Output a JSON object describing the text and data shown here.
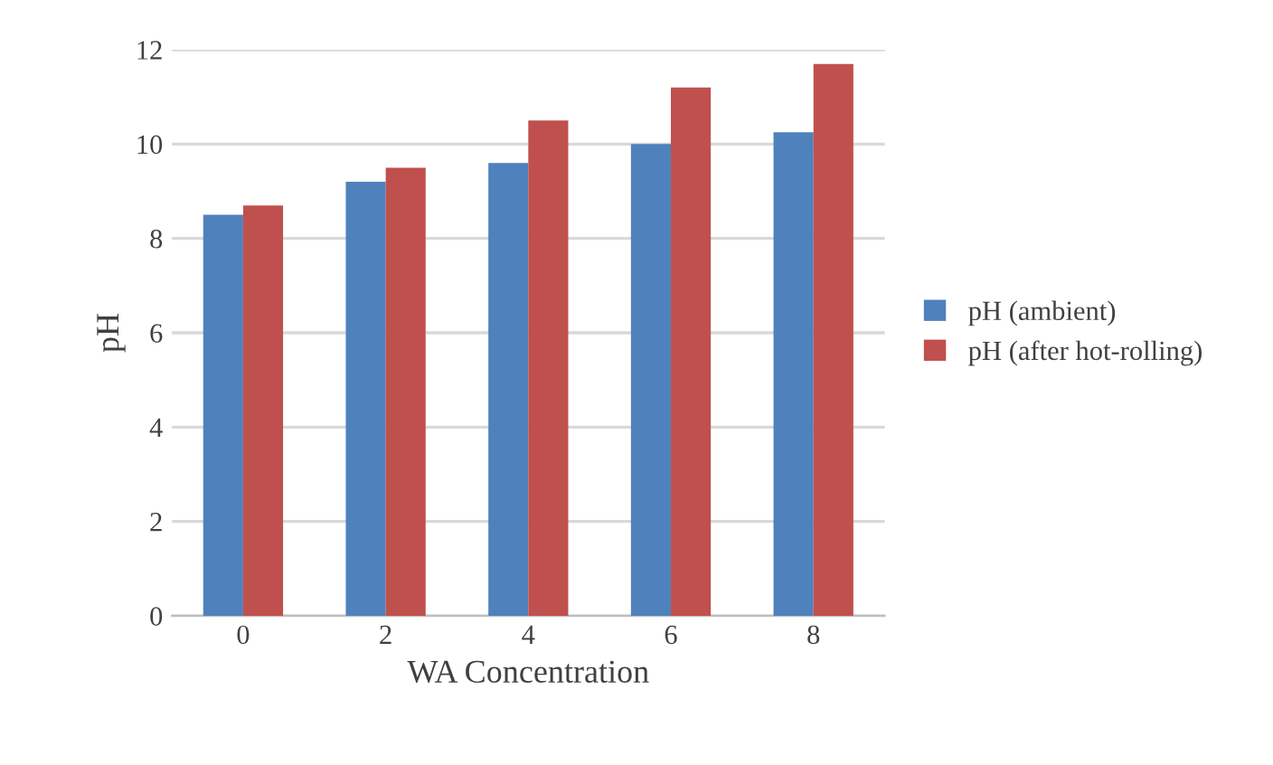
{
  "chart_data": {
    "type": "bar",
    "xlabel": "WA Concentration",
    "ylabel": "pH",
    "categories": [
      "0",
      "2",
      "4",
      "6",
      "8"
    ],
    "series": [
      {
        "name": "pH (ambient)",
        "color": "#4f81bd",
        "values": [
          8.5,
          9.2,
          9.6,
          10.0,
          10.25
        ]
      },
      {
        "name": "pH (after hot-rolling)",
        "color": "#c0504d",
        "values": [
          8.7,
          9.5,
          10.5,
          11.2,
          11.7
        ]
      }
    ],
    "ylim": [
      0,
      12
    ],
    "yticks": [
      0,
      2,
      4,
      6,
      8,
      10,
      12
    ],
    "grid": "y",
    "legend": "right"
  }
}
